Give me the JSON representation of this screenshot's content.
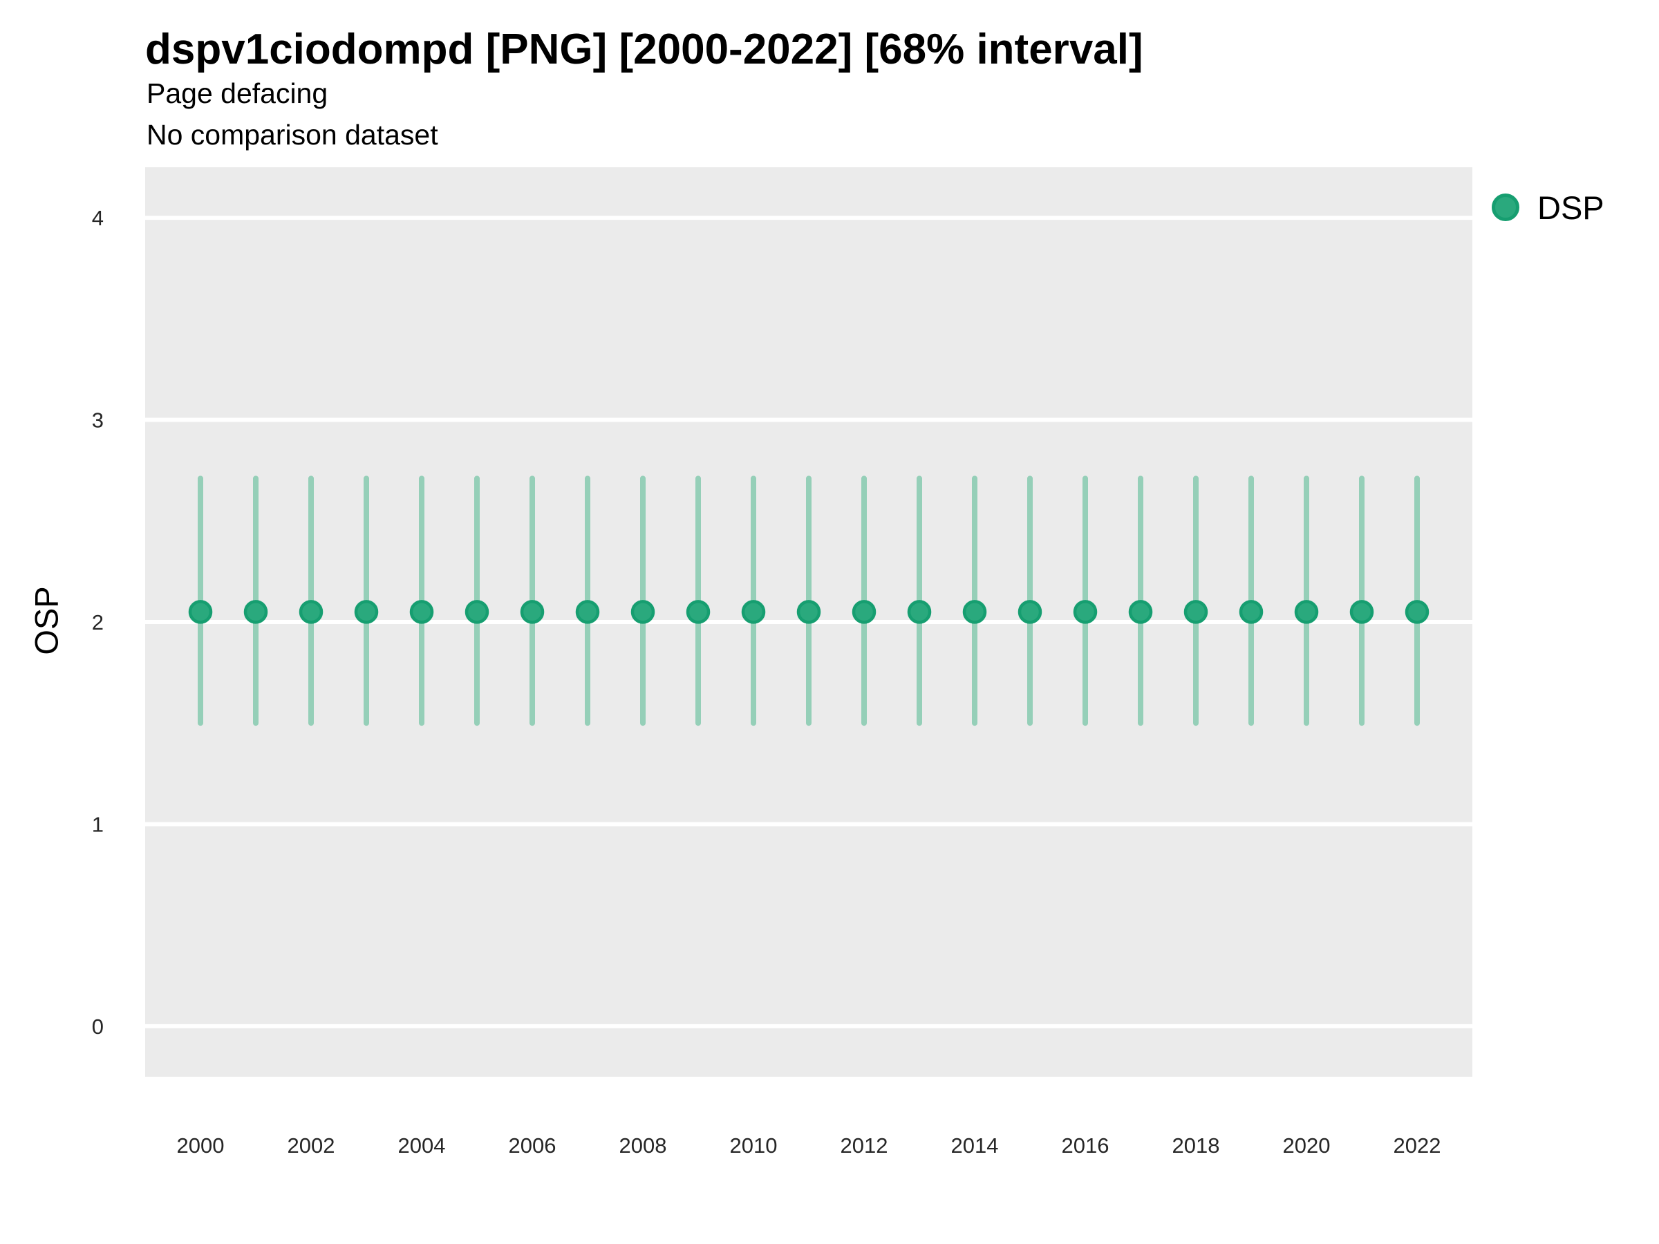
{
  "title": "dspv1ciodompd [PNG] [2000-2022] [68% interval]",
  "subtitle": "Page defacing",
  "note": "No comparison dataset",
  "legend": {
    "position": "right",
    "items": [
      {
        "label": "DSP",
        "marker": "circle",
        "color": "#2aa97d"
      }
    ]
  },
  "colors": {
    "panel_background": "#ebebeb",
    "gridline": "#ffffff",
    "point_fill": "#2aa97d",
    "point_stroke": "#169e70",
    "error_bar": "#95cfb8",
    "text": "#000000",
    "tick_text": "#262626"
  },
  "chart_data": {
    "type": "scatter",
    "title": "dspv1ciodompd [PNG] [2000-2022] [68% interval]",
    "subtitle": "Page defacing",
    "note": "No comparison dataset",
    "xlabel": "",
    "ylabel": "OSP",
    "interval_label": "68% interval",
    "legend_position": "right",
    "grid": "horizontal-major-only",
    "xlim": [
      1999,
      2023
    ],
    "ylim": [
      -0.25,
      4.25
    ],
    "x_ticks": [
      2000,
      2002,
      2004,
      2006,
      2008,
      2010,
      2012,
      2014,
      2016,
      2018,
      2020,
      2022
    ],
    "y_ticks": [
      0,
      1,
      2,
      3,
      4
    ],
    "series": [
      {
        "name": "DSP",
        "x": [
          2000,
          2001,
          2002,
          2003,
          2004,
          2005,
          2006,
          2007,
          2008,
          2009,
          2010,
          2011,
          2012,
          2013,
          2014,
          2015,
          2016,
          2017,
          2018,
          2019,
          2020,
          2021,
          2022
        ],
        "y": [
          2.05,
          2.05,
          2.05,
          2.05,
          2.05,
          2.05,
          2.05,
          2.05,
          2.05,
          2.05,
          2.05,
          2.05,
          2.05,
          2.05,
          2.05,
          2.05,
          2.05,
          2.05,
          2.05,
          2.05,
          2.05,
          2.05,
          2.05
        ],
        "y_lower": [
          1.5,
          1.5,
          1.5,
          1.5,
          1.5,
          1.5,
          1.5,
          1.5,
          1.5,
          1.5,
          1.5,
          1.5,
          1.5,
          1.5,
          1.5,
          1.5,
          1.5,
          1.5,
          1.5,
          1.5,
          1.5,
          1.5,
          1.5
        ],
        "y_upper": [
          2.71,
          2.71,
          2.71,
          2.71,
          2.71,
          2.71,
          2.71,
          2.71,
          2.71,
          2.71,
          2.71,
          2.71,
          2.71,
          2.71,
          2.71,
          2.71,
          2.71,
          2.71,
          2.71,
          2.71,
          2.71,
          2.71,
          2.71
        ]
      }
    ]
  }
}
